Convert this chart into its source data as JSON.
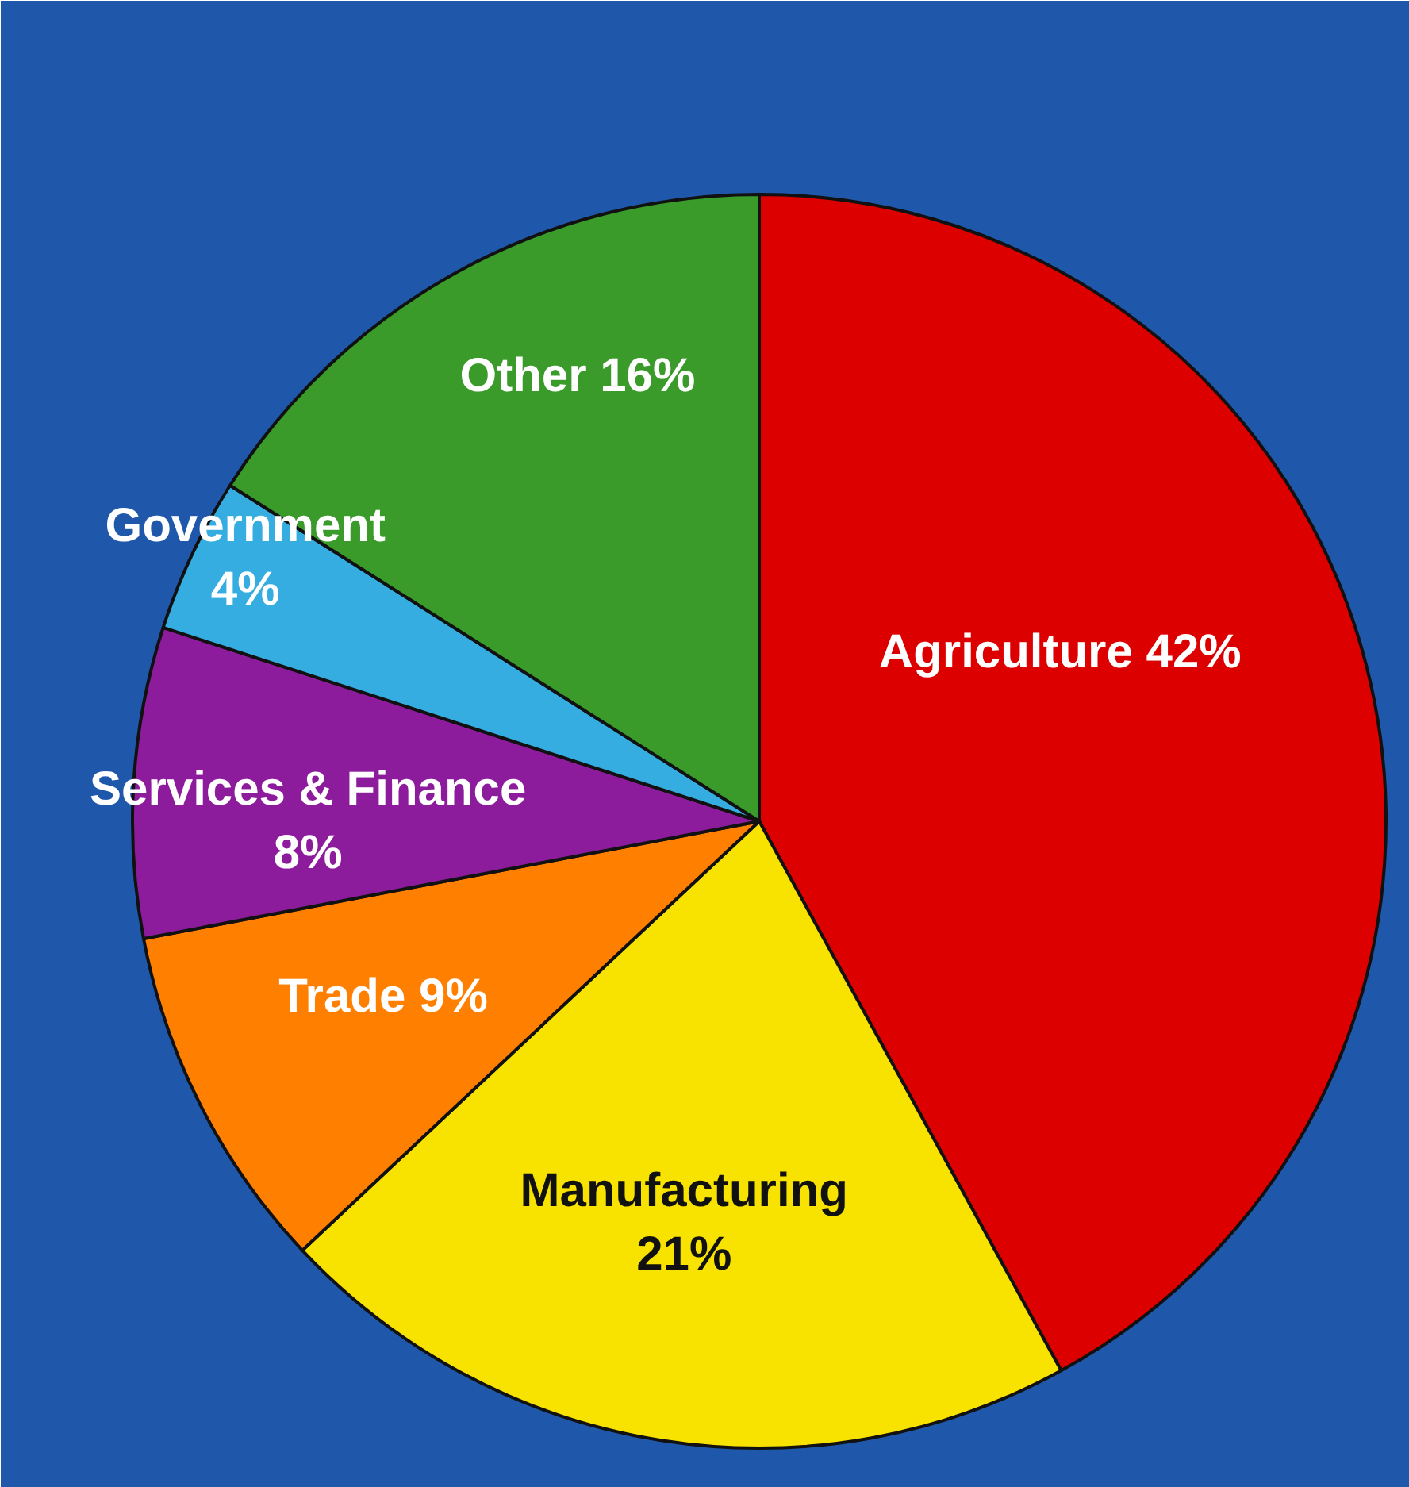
{
  "chart_data": {
    "type": "pie",
    "categories": [
      "Agriculture",
      "Manufacturing",
      "Trade",
      "Services & Finance",
      "Government",
      "Other"
    ],
    "values": [
      42,
      21,
      9,
      8,
      4,
      16
    ],
    "colors": [
      "#dd0000",
      "#f7e200",
      "#ff7f00",
      "#8c1c9c",
      "#35ade0",
      "#3a9a2a"
    ],
    "value_labels": [
      "42%",
      "21%",
      "9%",
      "8%",
      "4%",
      "16%"
    ]
  }
}
